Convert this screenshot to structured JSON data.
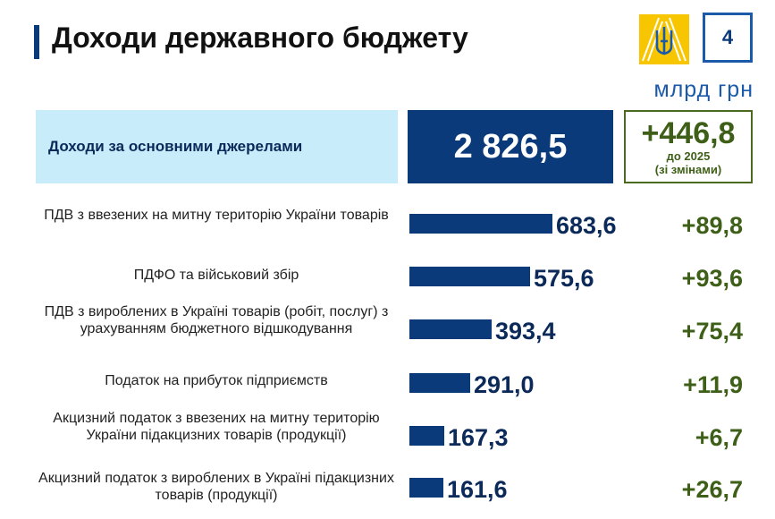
{
  "header": {
    "title": "Доходи державного бюджету",
    "page_number": "4",
    "unit": "млрд грн"
  },
  "summary": {
    "label": "Доходи за основними джерелами",
    "total": "2 826,5",
    "change": "+446,8",
    "change_note_1": "до 2025",
    "change_note_2": "(зі змінами)"
  },
  "colors": {
    "bar": "#0b3a7a",
    "accent_light": "#c9ecfa",
    "change_green": "#3e5f17",
    "emblem_yellow": "#f7c600"
  },
  "chart_data": {
    "type": "bar",
    "orientation": "horizontal",
    "title": "",
    "xlabel": "",
    "ylabel": "",
    "xlim": [
      0,
      683.6
    ],
    "categories": [
      "ПДВ з ввезених на митну територію України товарів",
      "ПДФО та військовий збір",
      "ПДВ з вироблених в Україні товарів (робіт, послуг) з урахуванням бюджетного відшкодування",
      "Податок на прибуток підприємств",
      "Акцизний податок з ввезених на митну територію України підакцизних товарів (продукції)",
      "Акцизний податок з вироблених в Україні підакцизних товарів (продукції)"
    ],
    "values": [
      683.6,
      575.6,
      393.4,
      291.0,
      167.3,
      161.6
    ],
    "value_labels": [
      "683,6",
      "575,6",
      "393,4",
      "291,0",
      "167,3",
      "161,6"
    ],
    "changes": [
      "+89,8",
      "+93,6",
      "+75,4",
      "+11,9",
      "+6,7",
      "+26,7"
    ]
  }
}
